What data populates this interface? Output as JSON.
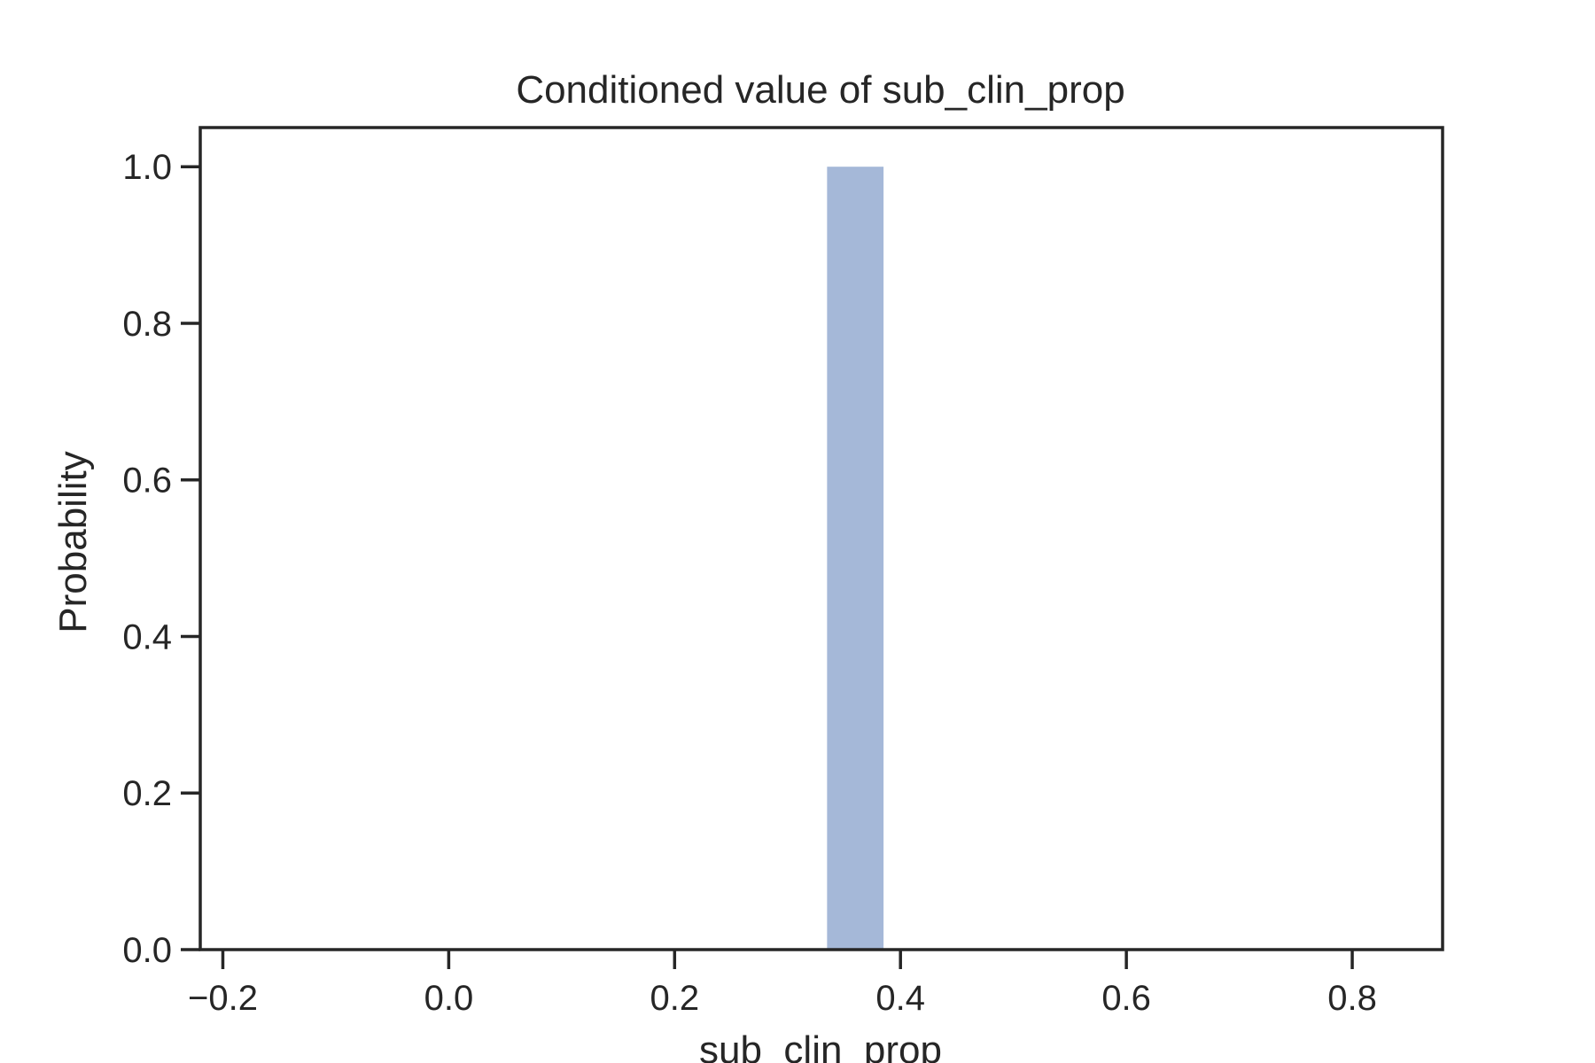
{
  "chart_data": {
    "type": "bar",
    "title": "Conditioned value of sub_clin_prop",
    "xlabel": "sub_clin_prop",
    "ylabel": "Probability",
    "xlim": [
      -0.22,
      0.88
    ],
    "ylim": [
      0.0,
      1.05
    ],
    "xticks": [
      -0.2,
      0.0,
      0.2,
      0.4,
      0.6,
      0.8
    ],
    "xtick_labels": [
      "−0.2",
      "0.0",
      "0.2",
      "0.4",
      "0.6",
      "0.8"
    ],
    "yticks": [
      0.0,
      0.2,
      0.4,
      0.6,
      0.8,
      1.0
    ],
    "ytick_labels": [
      "0.0",
      "0.2",
      "0.4",
      "0.6",
      "0.8",
      "1.0"
    ],
    "bars": [
      {
        "x_start": 0.335,
        "x_end": 0.385,
        "value": 1.0
      }
    ],
    "grid": false,
    "legend": "none",
    "bar_color": "#a5b8d8",
    "axis_color": "#262626"
  }
}
